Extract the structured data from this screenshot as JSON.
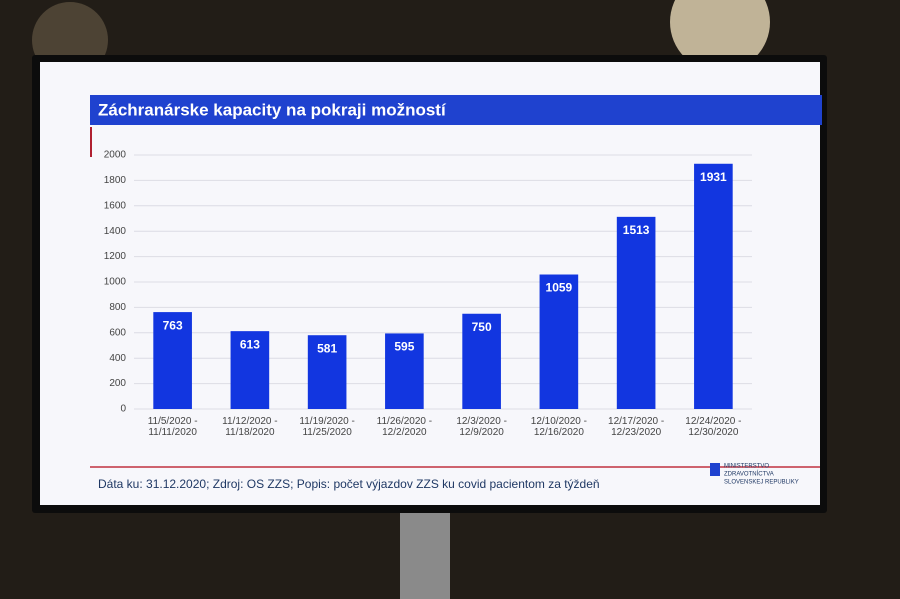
{
  "chart_data": {
    "type": "bar",
    "title": "Záchranárske kapacity na pokraji možností",
    "categories": [
      "11/5/2020 - 11/11/2020",
      "11/12/2020 - 11/18/2020",
      "11/19/2020 - 11/25/2020",
      "11/26/2020 - 12/2/2020",
      "12/3/2020 - 12/9/2020",
      "12/10/2020 - 12/16/2020",
      "12/17/2020 - 12/23/2020",
      "12/24/2020 - 12/30/2020"
    ],
    "values": [
      763,
      613,
      581,
      595,
      750,
      1059,
      1513,
      1931
    ],
    "color": "#1236e0",
    "ylim": [
      0,
      2000
    ],
    "yticks": [
      0,
      200,
      400,
      600,
      800,
      1000,
      1200,
      1400,
      1600,
      1800,
      2000
    ],
    "grid": true,
    "note": "Dáta ku: 31.12.2020; Zdroj: OS ZZS; Popis: počet výjazdov ZZS ku covid pacientom za týždeň",
    "logo_text": [
      "MINISTERSTVO",
      "ZDRAVOTNÍCTVA",
      "SLOVENSKEJ REPUBLIKY"
    ]
  }
}
